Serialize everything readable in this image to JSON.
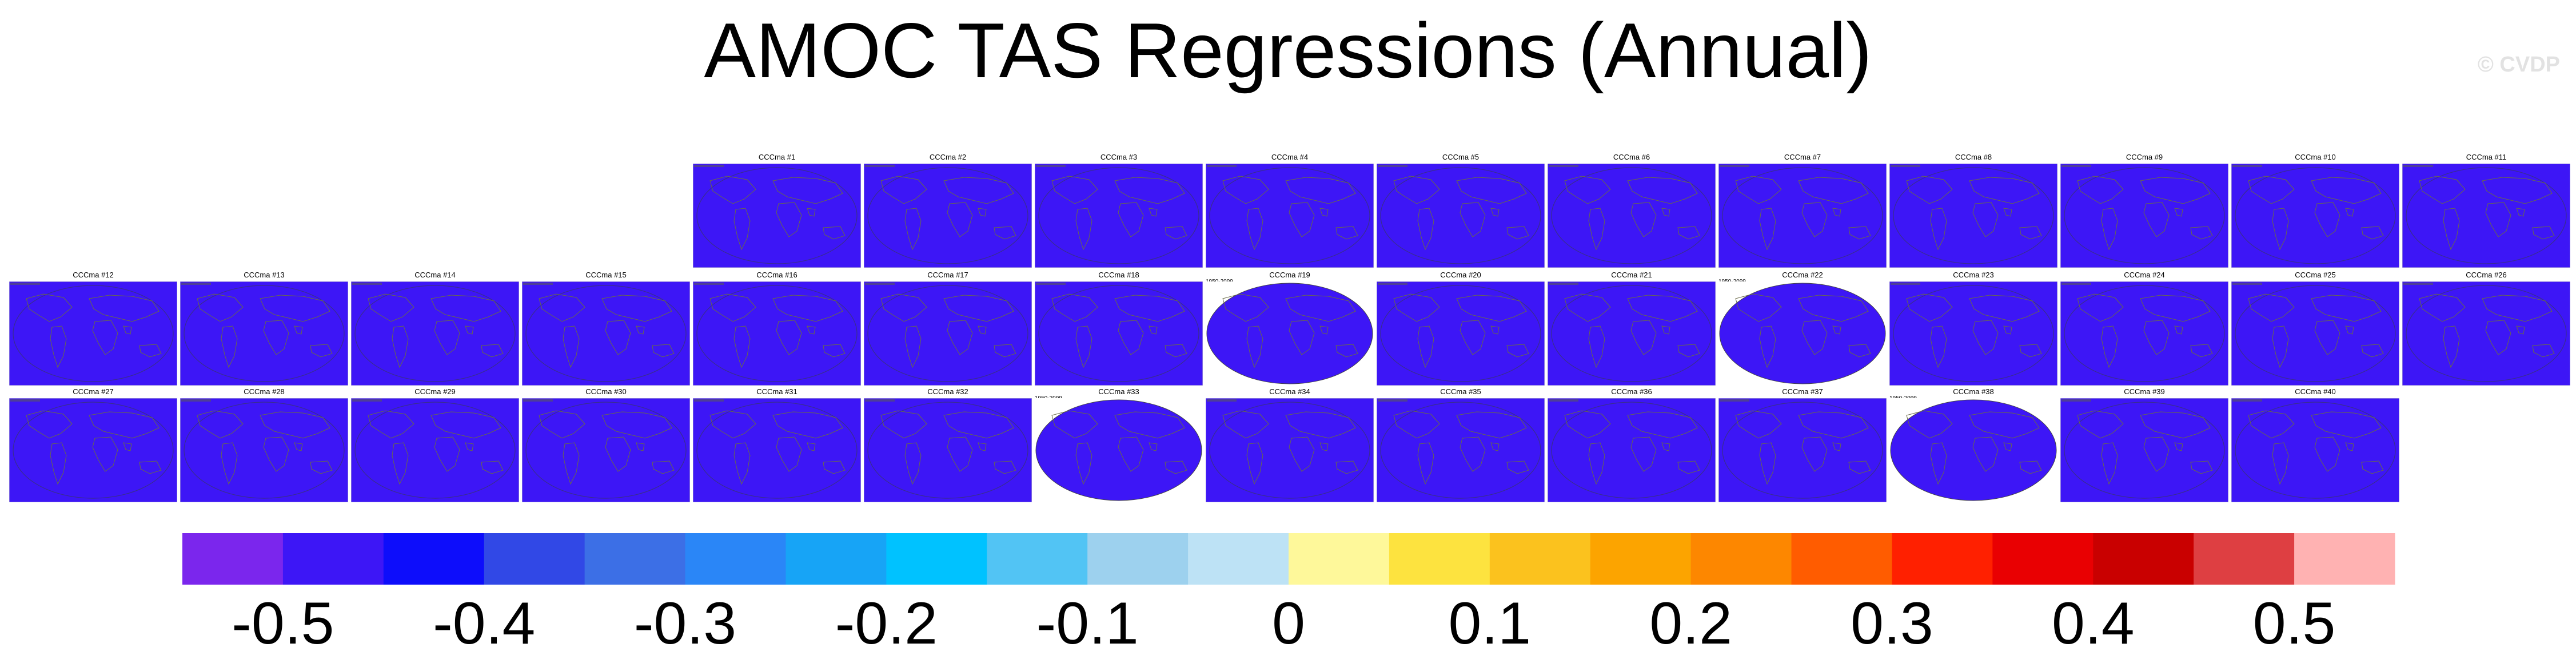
{
  "chart_data": {
    "type": "heatmap",
    "title": "AMOC TAS Regressions (Annual)",
    "watermark": "© CVDP",
    "variable": "TAS",
    "season": "Annual",
    "panels": [
      {
        "title": "CCCma #1",
        "period": "",
        "value": -0.5
      },
      {
        "title": "CCCma #2",
        "period": "",
        "value": -0.5
      },
      {
        "title": "CCCma #3",
        "period": "",
        "value": -0.5
      },
      {
        "title": "CCCma #4",
        "period": "",
        "value": -0.5
      },
      {
        "title": "CCCma #5",
        "period": "",
        "value": -0.5
      },
      {
        "title": "CCCma #6",
        "period": "",
        "value": -0.5
      },
      {
        "title": "CCCma #7",
        "period": "",
        "value": -0.5
      },
      {
        "title": "CCCma #8",
        "period": "",
        "value": -0.5
      },
      {
        "title": "CCCma #9",
        "period": "",
        "value": -0.5
      },
      {
        "title": "CCCma #10",
        "period": "",
        "value": -0.5
      },
      {
        "title": "CCCma #11",
        "period": "",
        "value": -0.5
      },
      {
        "title": "CCCma #12",
        "period": "",
        "value": -0.5
      },
      {
        "title": "CCCma #13",
        "period": "",
        "value": -0.5
      },
      {
        "title": "CCCma #14",
        "period": "",
        "value": -0.5
      },
      {
        "title": "CCCma #15",
        "period": "",
        "value": -0.5
      },
      {
        "title": "CCCma #16",
        "period": "",
        "value": -0.5
      },
      {
        "title": "CCCma #17",
        "period": "",
        "value": -0.5
      },
      {
        "title": "CCCma #18",
        "period": "",
        "value": -0.5
      },
      {
        "title": "CCCma #19",
        "period": "1950-2099",
        "value": -0.5
      },
      {
        "title": "CCCma #20",
        "period": "",
        "value": -0.5
      },
      {
        "title": "CCCma #21",
        "period": "",
        "value": -0.5
      },
      {
        "title": "CCCma #22",
        "period": "1950-2099",
        "value": -0.5
      },
      {
        "title": "CCCma #23",
        "period": "",
        "value": -0.5
      },
      {
        "title": "CCCma #24",
        "period": "",
        "value": -0.5
      },
      {
        "title": "CCCma #25",
        "period": "",
        "value": -0.5
      },
      {
        "title": "CCCma #26",
        "period": "",
        "value": -0.5
      },
      {
        "title": "CCCma #27",
        "period": "",
        "value": -0.5
      },
      {
        "title": "CCCma #28",
        "period": "",
        "value": -0.5
      },
      {
        "title": "CCCma #29",
        "period": "",
        "value": -0.5
      },
      {
        "title": "CCCma #30",
        "period": "",
        "value": -0.5
      },
      {
        "title": "CCCma #31",
        "period": "",
        "value": -0.5
      },
      {
        "title": "CCCma #32",
        "period": "",
        "value": -0.5
      },
      {
        "title": "CCCma #33",
        "period": "1950-2099",
        "value": -0.5
      },
      {
        "title": "CCCma #34",
        "period": "",
        "value": -0.5
      },
      {
        "title": "CCCma #35",
        "period": "",
        "value": -0.5
      },
      {
        "title": "CCCma #36",
        "period": "",
        "value": -0.5
      },
      {
        "title": "CCCma #37",
        "period": "",
        "value": -0.5
      },
      {
        "title": "CCCma #38",
        "period": "1950-2099",
        "value": -0.5
      },
      {
        "title": "CCCma #39",
        "period": "",
        "value": -0.5
      },
      {
        "title": "CCCma #40",
        "period": "",
        "value": -0.5
      }
    ],
    "colorbar": {
      "ticks": [
        "-0.5",
        "-0.4",
        "-0.3",
        "-0.2",
        "-0.1",
        "0",
        "0.1",
        "0.2",
        "0.3",
        "0.4",
        "0.5"
      ],
      "range": [
        -0.55,
        0.55
      ],
      "colors": [
        "#7b26ed",
        "#3d16f6",
        "#0d0dfb",
        "#3148e6",
        "#3c6fe6",
        "#2a86f7",
        "#17a4f6",
        "#00c2ff",
        "#52c4f4",
        "#9dd1ee",
        "#bde2f5",
        "#fef89a",
        "#fde33f",
        "#fbc21e",
        "#fca400",
        "#fd8700",
        "#ff5c00",
        "#ff2000",
        "#e90002",
        "#c90000",
        "#de3f42",
        "#ffb2b2"
      ]
    },
    "map_style": {
      "ocean": "#7b26ed",
      "outline": "#3a2e8c",
      "frame": "#c8c8c8",
      "coast": "#6a6a4a"
    }
  }
}
